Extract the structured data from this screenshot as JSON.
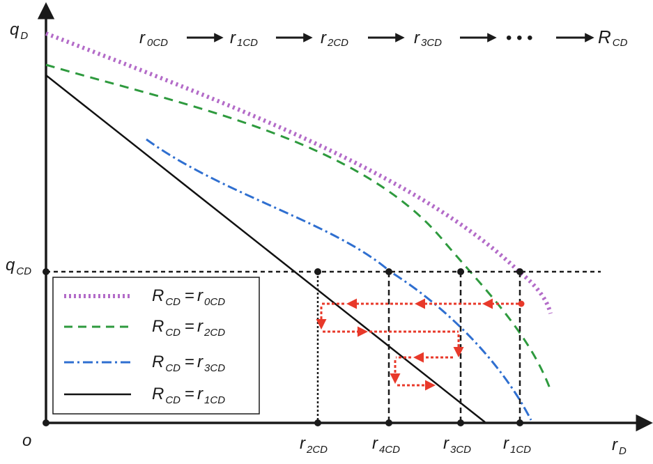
{
  "axes": {
    "y_main": "q",
    "y_sub": "D",
    "x_main": "r",
    "x_sub": "D",
    "origin": "o",
    "qcd_main": "q",
    "qcd_sub": "CD"
  },
  "sequence": {
    "items": [
      {
        "main": "r",
        "sub": "0CD"
      },
      {
        "main": "r",
        "sub": "1CD"
      },
      {
        "main": "r",
        "sub": "2CD"
      },
      {
        "main": "r",
        "sub": "3CD"
      },
      {
        "main": "R",
        "sub": "CD"
      }
    ],
    "ellipsis": "• • •"
  },
  "x_ticks": [
    {
      "main": "r",
      "sub": "2CD"
    },
    {
      "main": "r",
      "sub": "4CD"
    },
    {
      "main": "r",
      "sub": "3CD"
    },
    {
      "main": "r",
      "sub": "1CD"
    }
  ],
  "legend": {
    "items": [
      {
        "lhs_main": "R",
        "lhs_sub": "CD",
        "eq": "=",
        "rhs_main": "r",
        "rhs_sub": "0CD",
        "color": "#b36bc8",
        "style": "dotted-thick"
      },
      {
        "lhs_main": "R",
        "lhs_sub": "CD",
        "eq": "=",
        "rhs_main": "r",
        "rhs_sub": "2CD",
        "color": "#2e9a3e",
        "style": "dashed"
      },
      {
        "lhs_main": "R",
        "lhs_sub": "CD",
        "eq": "=",
        "rhs_main": "r",
        "rhs_sub": "3CD",
        "color": "#2f6fd0",
        "style": "dash-dot"
      },
      {
        "lhs_main": "R",
        "lhs_sub": "CD",
        "eq": "=",
        "rhs_main": "r",
        "rhs_sub": "1CD",
        "color": "#111111",
        "style": "solid"
      }
    ]
  },
  "colors": {
    "axis": "#1a1a1a",
    "arrow": "#e8392a",
    "guide": "#1a1a1a"
  }
}
